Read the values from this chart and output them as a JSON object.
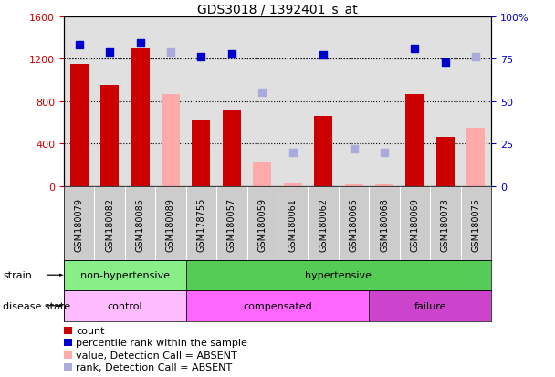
{
  "title": "GDS3018 / 1392401_s_at",
  "samples": [
    "GSM180079",
    "GSM180082",
    "GSM180085",
    "GSM180089",
    "GSM178755",
    "GSM180057",
    "GSM180059",
    "GSM180061",
    "GSM180062",
    "GSM180065",
    "GSM180068",
    "GSM180069",
    "GSM180073",
    "GSM180075"
  ],
  "count_values": [
    1150,
    950,
    1300,
    null,
    620,
    710,
    null,
    null,
    660,
    null,
    null,
    870,
    460,
    null
  ],
  "count_absent": [
    null,
    null,
    null,
    870,
    null,
    null,
    230,
    30,
    null,
    20,
    20,
    null,
    null,
    550
  ],
  "rank_values": [
    83,
    79,
    84,
    null,
    76,
    78,
    null,
    null,
    77,
    null,
    null,
    81,
    73,
    null
  ],
  "rank_absent": [
    null,
    null,
    null,
    79,
    null,
    null,
    55,
    20,
    null,
    22,
    20,
    null,
    null,
    76
  ],
  "strain_groups": [
    {
      "label": "non-hypertensive",
      "start": 0,
      "end": 4,
      "color": "#88ee88"
    },
    {
      "label": "hypertensive",
      "start": 4,
      "end": 14,
      "color": "#55cc55"
    }
  ],
  "disease_groups": [
    {
      "label": "control",
      "start": 0,
      "end": 4,
      "color": "#ffbbff"
    },
    {
      "label": "compensated",
      "start": 4,
      "end": 10,
      "color": "#ff66ff"
    },
    {
      "label": "failure",
      "start": 10,
      "end": 14,
      "color": "#cc44cc"
    }
  ],
  "ylim_left": [
    0,
    1600
  ],
  "ylim_right": [
    0,
    100
  ],
  "yticks_left": [
    0,
    400,
    800,
    1200,
    1600
  ],
  "yticks_right": [
    0,
    25,
    50,
    75,
    100
  ],
  "bar_color_present": "#cc0000",
  "bar_color_absent": "#ffaaaa",
  "dot_color_present": "#0000cc",
  "dot_color_absent": "#aaaadd",
  "grid_color": "black",
  "bg_color": "#e0e0e0",
  "xband_color": "#cccccc",
  "left_label_color": "#cc0000",
  "right_label_color": "#0000cc"
}
